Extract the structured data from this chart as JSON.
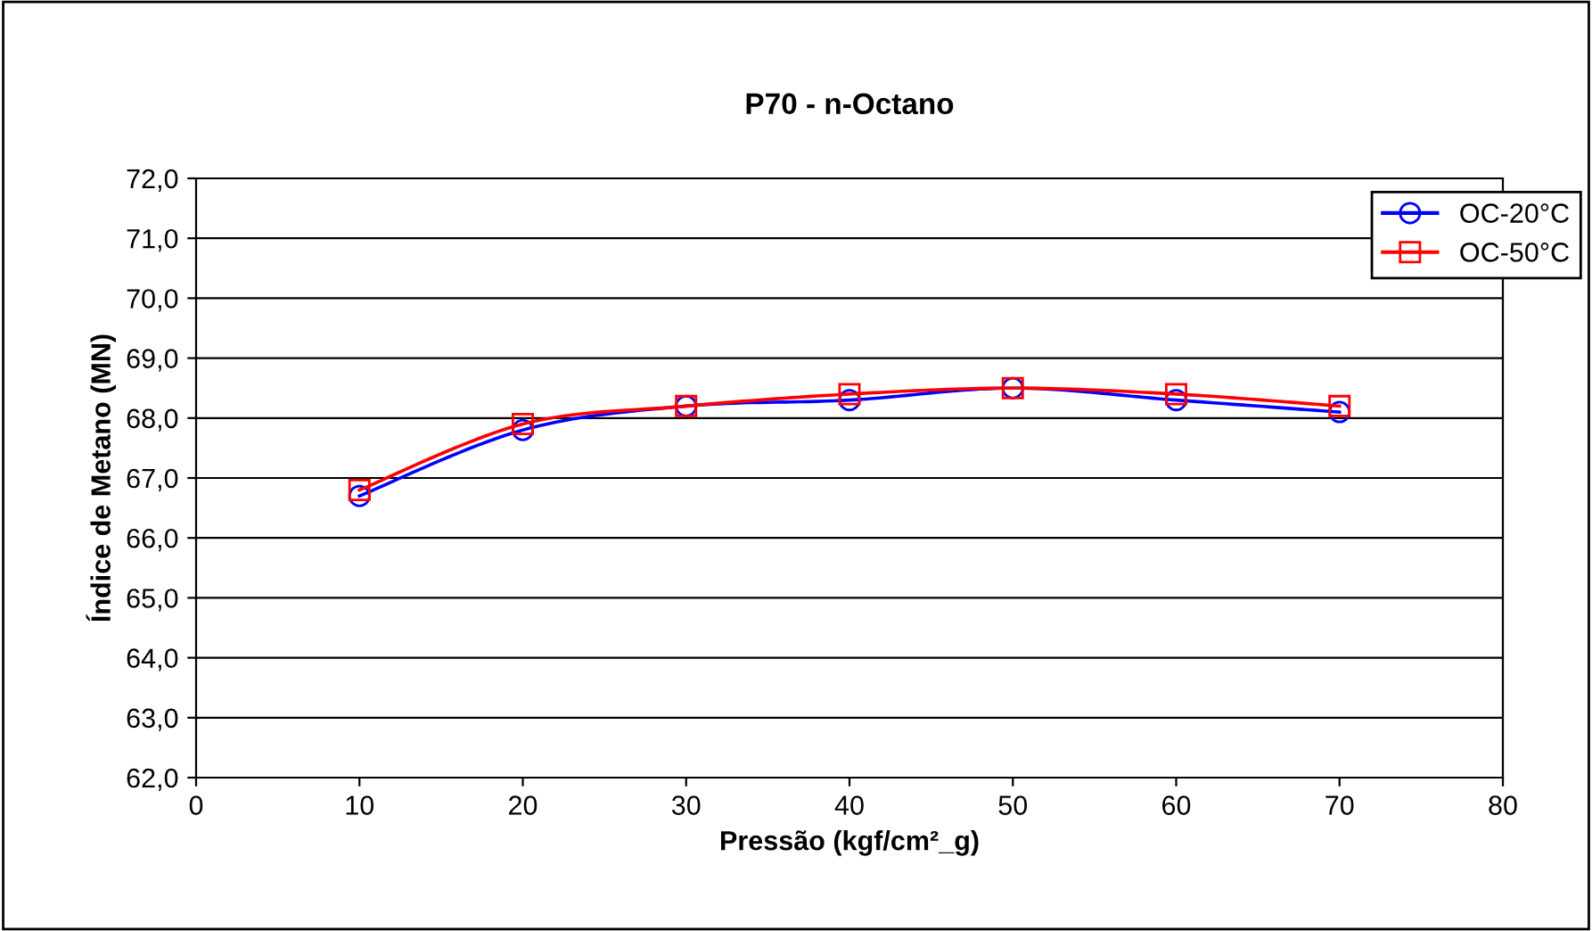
{
  "chart_data": {
    "type": "line",
    "title": "P70 - n-Octano",
    "xlabel": "Pressão (kgf/cm²_g)",
    "ylabel": "Índice de Metano (MN)",
    "x": [
      10,
      20,
      30,
      40,
      50,
      60,
      70
    ],
    "series": [
      {
        "name": "OC-20°C",
        "color": "#0000ff",
        "marker": "circle",
        "values": [
          66.7,
          67.8,
          68.2,
          68.3,
          68.5,
          68.3,
          68.1
        ]
      },
      {
        "name": "OC-50°C",
        "color": "#ff0000",
        "marker": "square",
        "values": [
          66.8,
          67.9,
          68.2,
          68.4,
          68.5,
          68.4,
          68.2
        ]
      }
    ],
    "xlim": [
      0,
      80
    ],
    "xticks": [
      0,
      10,
      20,
      30,
      40,
      50,
      60,
      70,
      80
    ],
    "ylim": [
      62,
      72
    ],
    "yticks": [
      {
        "value": 62,
        "label": "62,0"
      },
      {
        "value": 63,
        "label": "63,0"
      },
      {
        "value": 64,
        "label": "64,0"
      },
      {
        "value": 65,
        "label": "65,0"
      },
      {
        "value": 66,
        "label": "66,0"
      },
      {
        "value": 67,
        "label": "67,0"
      },
      {
        "value": 68,
        "label": "68,0"
      },
      {
        "value": 69,
        "label": "69,0"
      },
      {
        "value": 70,
        "label": "70,0"
      },
      {
        "value": 71,
        "label": "71,0"
      },
      {
        "value": 72,
        "label": "72,0"
      }
    ],
    "grid": "y",
    "legend": "top right",
    "line_style": "solid"
  }
}
